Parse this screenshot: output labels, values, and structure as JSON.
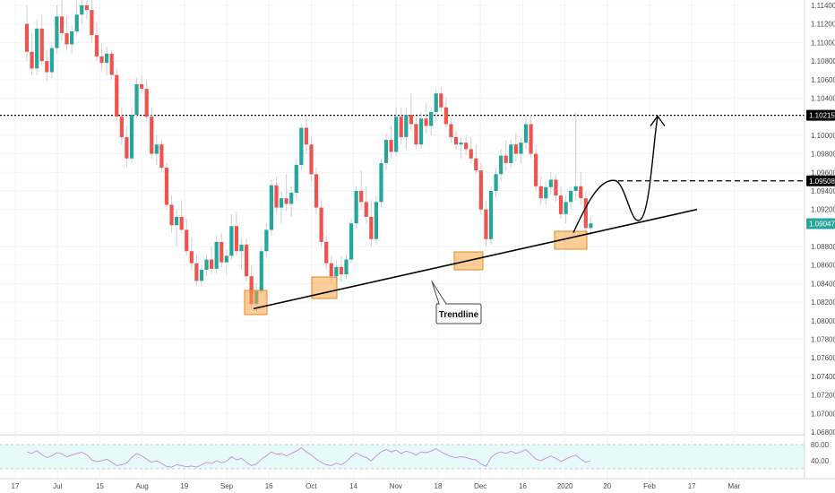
{
  "chart_data": {
    "type": "candlestick",
    "instrument_note": "",
    "colors": {
      "up": "#26a69a",
      "down": "#ef5350",
      "sideline": "#cfcfcf",
      "box": "#f7a445",
      "rsi": "#c58bd6",
      "rsi_band": "#e6fafa"
    },
    "y_ticks": [
      "1.11400",
      "1.11200",
      "1.11000",
      "1.10800",
      "1.10600",
      "1.10400",
      "1.10000",
      "1.09800",
      "1.09600",
      "1.09400",
      "1.09200",
      "1.08800",
      "1.08600",
      "1.08400",
      "1.08200",
      "1.08000",
      "1.07800",
      "1.07600",
      "1.07400",
      "1.07200",
      "1.07000",
      "1.06800"
    ],
    "y_tick_values": [
      1.114,
      1.112,
      1.11,
      1.108,
      1.106,
      1.104,
      1.1,
      1.098,
      1.096,
      1.094,
      1.092,
      1.088,
      1.086,
      1.084,
      1.082,
      1.08,
      1.078,
      1.076,
      1.074,
      1.072,
      1.07,
      1.068
    ],
    "ylim": [
      1.068,
      1.115
    ],
    "x_labels": [
      "17",
      "Jul",
      "15",
      "Aug",
      "19",
      "Sep",
      "16",
      "Oct",
      "14",
      "Nov",
      "18",
      "Dec",
      "16",
      "2020",
      "20",
      "Feb",
      "17",
      "Mar"
    ],
    "price_tags": [
      {
        "text": "1.10215",
        "value": 1.10215,
        "color": "#000000"
      },
      {
        "text": "1.09508",
        "value": 1.09508,
        "color": "#000000"
      },
      {
        "text": "1.09047",
        "value": 1.09047,
        "color": "#26a69a"
      }
    ],
    "horizontal_levels": [
      {
        "value": 1.10215,
        "style": "dotted"
      },
      {
        "value": 1.09508,
        "style": "dashed"
      }
    ],
    "trendline": {
      "from": {
        "label": "Sep",
        "value": 1.0813
      },
      "to": {
        "label": "2020",
        "value": 1.092
      }
    },
    "annotation": "Trendline",
    "rsi_ticks": [
      "80.00",
      "40.00"
    ],
    "candles": [
      [
        1.112,
        1.114,
        1.108,
        1.109
      ],
      [
        1.109,
        1.111,
        1.1065,
        1.1072
      ],
      [
        1.1072,
        1.1125,
        1.1065,
        1.1115
      ],
      [
        1.1115,
        1.113,
        1.1075,
        1.108
      ],
      [
        1.108,
        1.1092,
        1.1058,
        1.1068
      ],
      [
        1.1068,
        1.11,
        1.1062,
        1.1094
      ],
      [
        1.1094,
        1.114,
        1.1088,
        1.1128
      ],
      [
        1.1128,
        1.1148,
        1.1102,
        1.111
      ],
      [
        1.111,
        1.1128,
        1.1092,
        1.1098
      ],
      [
        1.1098,
        1.1118,
        1.1088,
        1.1112
      ],
      [
        1.1112,
        1.1145,
        1.1108,
        1.113
      ],
      [
        1.113,
        1.115,
        1.112,
        1.114
      ],
      [
        1.114,
        1.115,
        1.1125,
        1.1135
      ],
      [
        1.1135,
        1.115,
        1.11,
        1.1108
      ],
      [
        1.1108,
        1.1122,
        1.108,
        1.1085
      ],
      [
        1.1085,
        1.1098,
        1.107,
        1.1078
      ],
      [
        1.1078,
        1.1095,
        1.1065,
        1.1088
      ],
      [
        1.1088,
        1.1092,
        1.106,
        1.1065
      ],
      [
        1.1065,
        1.1072,
        1.1015,
        1.102
      ],
      [
        1.102,
        1.103,
        1.099,
        1.0998
      ],
      [
        1.0998,
        1.101,
        1.0965,
        1.0975
      ],
      [
        1.0975,
        1.103,
        1.097,
        1.1022
      ],
      [
        1.1022,
        1.1062,
        1.1018,
        1.1055
      ],
      [
        1.1055,
        1.1065,
        1.1045,
        1.105
      ],
      [
        1.105,
        1.106,
        1.1015,
        1.102
      ],
      [
        1.102,
        1.103,
        1.0975,
        1.098
      ],
      [
        1.098,
        1.1,
        1.0968,
        1.099
      ],
      [
        1.099,
        1.0995,
        1.096,
        1.0965
      ],
      [
        1.0965,
        1.097,
        1.092,
        1.0925
      ],
      [
        1.0925,
        1.0935,
        1.0895,
        1.0903
      ],
      [
        1.0903,
        1.092,
        1.088,
        1.0912
      ],
      [
        1.0912,
        1.093,
        1.0895,
        1.0898
      ],
      [
        1.0898,
        1.091,
        1.087,
        1.0875
      ],
      [
        1.0875,
        1.089,
        1.0855,
        1.0862
      ],
      [
        1.0862,
        1.0872,
        1.0838,
        1.0843
      ],
      [
        1.0843,
        1.086,
        1.0837,
        1.0855
      ],
      [
        1.0855,
        1.0872,
        1.0848,
        1.0866
      ],
      [
        1.0866,
        1.088,
        1.085,
        1.0856
      ],
      [
        1.0856,
        1.0892,
        1.085,
        1.0885
      ],
      [
        1.0885,
        1.0895,
        1.0858,
        1.0863
      ],
      [
        1.0863,
        1.0878,
        1.085,
        1.087
      ],
      [
        1.087,
        1.0915,
        1.0866,
        1.0902
      ],
      [
        1.0902,
        1.0918,
        1.087,
        1.0875
      ],
      [
        1.0875,
        1.089,
        1.0855,
        1.0882
      ],
      [
        1.0882,
        1.0888,
        1.0842,
        1.0848
      ],
      [
        1.0848,
        1.086,
        1.0812,
        1.0818
      ],
      [
        1.0818,
        1.084,
        1.081,
        1.0832
      ],
      [
        1.0832,
        1.088,
        1.0828,
        1.0875
      ],
      [
        1.0875,
        1.0905,
        1.0868,
        1.0898
      ],
      [
        1.0898,
        1.0952,
        1.0892,
        1.0946
      ],
      [
        1.0946,
        1.0955,
        1.0915,
        1.0922
      ],
      [
        1.0922,
        1.094,
        1.0905,
        1.0932
      ],
      [
        1.0932,
        1.0958,
        1.0918,
        1.0926
      ],
      [
        1.0926,
        1.0945,
        1.0912,
        1.0938
      ],
      [
        1.0938,
        1.0975,
        1.093,
        1.0968
      ],
      [
        1.0968,
        1.1012,
        1.0962,
        1.1008
      ],
      [
        1.1008,
        1.102,
        1.098,
        1.099
      ],
      [
        1.099,
        1.0998,
        1.095,
        1.0958
      ],
      [
        1.0958,
        1.0965,
        1.0915,
        1.0922
      ],
      [
        1.0922,
        1.093,
        1.088,
        1.0885
      ],
      [
        1.0885,
        1.0892,
        1.0855,
        1.0862
      ],
      [
        1.0862,
        1.087,
        1.084,
        1.0848
      ],
      [
        1.0848,
        1.0865,
        1.0838,
        1.0858
      ],
      [
        1.0858,
        1.087,
        1.0842,
        1.085
      ],
      [
        1.085,
        1.0872,
        1.0845,
        1.0866
      ],
      [
        1.0866,
        1.091,
        1.0862,
        1.0905
      ],
      [
        1.0905,
        1.0945,
        1.09,
        1.094
      ],
      [
        1.094,
        1.0962,
        1.092,
        1.0928
      ],
      [
        1.0928,
        1.0945,
        1.0905,
        1.0912
      ],
      [
        1.0912,
        1.093,
        1.088,
        1.0888
      ],
      [
        1.0888,
        1.0935,
        1.0882,
        1.0928
      ],
      [
        1.0928,
        1.0975,
        1.0922,
        1.097
      ],
      [
        1.097,
        1.1002,
        1.0962,
        1.0995
      ],
      [
        1.0995,
        1.101,
        1.0975,
        1.0982
      ],
      [
        1.0982,
        1.103,
        1.0978,
        1.102
      ],
      [
        1.102,
        1.103,
        1.099,
        1.0998
      ],
      [
        1.0998,
        1.103,
        1.0985,
        1.1022
      ],
      [
        1.1022,
        1.1045,
        1.1005,
        1.1012
      ],
      [
        1.1012,
        1.102,
        1.0985,
        1.099
      ],
      [
        1.099,
        1.1025,
        1.0985,
        1.1018
      ],
      [
        1.1018,
        1.1035,
        1.1002,
        1.101
      ],
      [
        1.101,
        1.103,
        1.1,
        1.1025
      ],
      [
        1.1025,
        1.105,
        1.1015,
        1.1045
      ],
      [
        1.1045,
        1.1052,
        1.1025,
        1.103
      ],
      [
        1.103,
        1.104,
        1.1008,
        1.1012
      ],
      [
        1.1012,
        1.1018,
        1.0992,
        1.0998
      ],
      [
        1.0998,
        1.1005,
        1.0985,
        1.099
      ],
      [
        1.099,
        1.0998,
        1.0975,
        1.0992
      ],
      [
        1.0992,
        1.1,
        1.0978,
        1.0985
      ],
      [
        1.0985,
        1.0998,
        1.097,
        1.0975
      ],
      [
        1.0975,
        1.099,
        1.0958,
        1.0962
      ],
      [
        1.0962,
        1.097,
        1.0915,
        1.092
      ],
      [
        1.092,
        1.093,
        1.088,
        1.0888
      ],
      [
        1.0888,
        1.0945,
        1.0882,
        1.094
      ],
      [
        1.094,
        1.0965,
        1.0932,
        1.0958
      ],
      [
        1.0958,
        1.0985,
        1.095,
        1.0978
      ],
      [
        1.0978,
        1.0995,
        1.0962,
        1.097
      ],
      [
        1.097,
        1.0995,
        1.0965,
        1.099
      ],
      [
        1.099,
        1.1002,
        1.0972,
        1.098
      ],
      [
        1.098,
        1.0998,
        1.097,
        1.0992
      ],
      [
        1.0992,
        1.102,
        1.0985,
        1.1012
      ],
      [
        1.1012,
        1.1022,
        1.0975,
        1.098
      ],
      [
        1.098,
        1.099,
        1.094,
        1.0945
      ],
      [
        1.0945,
        1.0955,
        1.0925,
        1.0932
      ],
      [
        1.0932,
        1.095,
        1.0925,
        1.0944
      ],
      [
        1.0944,
        1.096,
        1.0936,
        1.0952
      ],
      [
        1.0952,
        1.0958,
        1.0928,
        1.0935
      ],
      [
        1.0935,
        1.0945,
        1.091,
        1.0915
      ],
      [
        1.0915,
        1.0935,
        1.0905,
        1.0928
      ],
      [
        1.0928,
        1.0945,
        1.092,
        1.094
      ],
      [
        1.094,
        1.1025,
        1.093,
        1.0945
      ],
      [
        1.0945,
        1.096,
        1.0925,
        1.0932
      ],
      [
        1.0932,
        1.094,
        1.0895,
        1.09
      ],
      [
        1.09,
        1.0912,
        1.0892,
        1.0905
      ]
    ],
    "rsi_values": [
      62,
      58,
      65,
      55,
      48,
      52,
      60,
      57,
      50,
      54,
      58,
      61,
      55,
      42,
      38,
      40,
      44,
      36,
      28,
      30,
      34,
      48,
      58,
      52,
      44,
      36,
      40,
      33,
      26,
      24,
      30,
      28,
      25,
      27,
      24,
      30,
      36,
      33,
      40,
      35,
      38,
      50,
      42,
      46,
      36,
      28,
      32,
      44,
      52,
      62,
      56,
      58,
      52,
      58,
      64,
      72,
      62,
      54,
      44,
      36,
      30,
      28,
      34,
      30,
      38,
      50,
      60,
      52,
      48,
      40,
      52,
      62,
      68,
      62,
      66,
      58,
      64,
      60,
      54,
      62,
      60,
      64,
      70,
      62,
      56,
      50,
      48,
      50,
      48,
      44,
      42,
      32,
      26,
      48,
      58,
      62,
      58,
      64,
      58,
      62,
      68,
      56,
      44,
      40,
      46,
      52,
      46,
      38,
      44,
      50,
      54,
      44,
      36,
      40
    ]
  }
}
